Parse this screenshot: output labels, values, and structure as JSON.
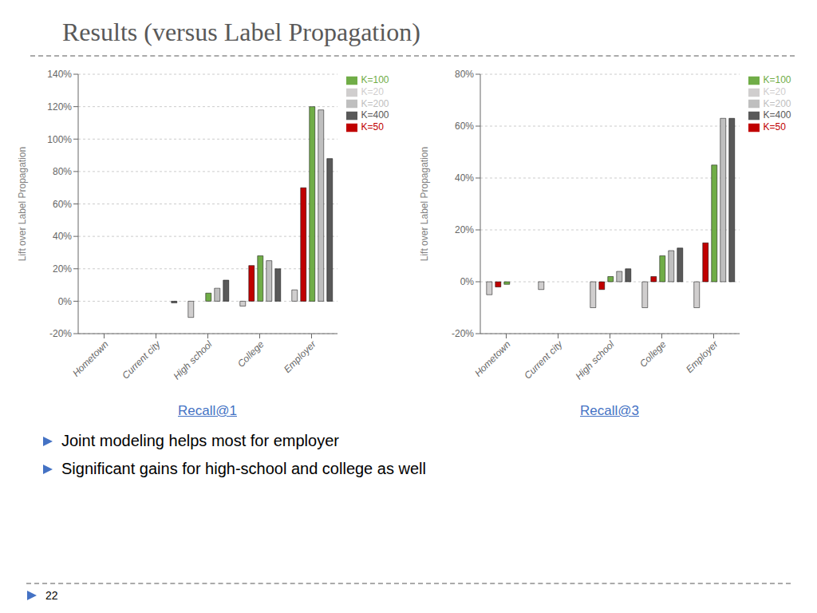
{
  "title": "Results (versus Label Propagation)",
  "annotations": [
    "Joint modeling helps most for employer",
    "Significant gains for high-school and college as well"
  ],
  "footer": "22",
  "chart_data": [
    {
      "type": "bar",
      "xlabel": "Recall@1",
      "ylabel": "Lift over Label Propagation",
      "categories": [
        "Hometown",
        "Current city",
        "High school",
        "College",
        "Employer"
      ],
      "series": [
        {
          "name": "K=20",
          "color": "#d0cece",
          "values": [
            0.0,
            0.0,
            -0.1,
            -0.03,
            0.07
          ]
        },
        {
          "name": "K=50",
          "color": "#c00000",
          "values": [
            0.0,
            0.0,
            0.0,
            0.22,
            0.7
          ]
        },
        {
          "name": "K=100",
          "color": "#70ad47",
          "values": [
            0.0,
            0.0,
            0.05,
            0.28,
            1.2
          ]
        },
        {
          "name": "K=200",
          "color": "#bfbfbf",
          "values": [
            0.0,
            0.0,
            0.08,
            0.25,
            1.18
          ]
        },
        {
          "name": "K=400",
          "color": "#595959",
          "values": [
            0.0,
            -0.01,
            0.13,
            0.2,
            0.88
          ]
        }
      ],
      "ylim": [
        -0.2,
        1.4
      ],
      "yticks": [
        {
          "value": -0.2,
          "label": "-20%"
        },
        {
          "value": 0.0,
          "label": "0%"
        },
        {
          "value": 0.2,
          "label": "20%"
        },
        {
          "value": 0.4,
          "label": "40%"
        },
        {
          "value": 0.6,
          "label": "60%"
        },
        {
          "value": 0.8,
          "label": "80%"
        },
        {
          "value": 1.0,
          "label": "100%"
        },
        {
          "value": 1.2,
          "label": "120%"
        },
        {
          "value": 1.4,
          "label": "140%"
        }
      ],
      "grid": true,
      "legend": "right"
    },
    {
      "type": "bar",
      "xlabel": "Recall@3",
      "ylabel": "Lift over Label Propagation",
      "categories": [
        "Hometown",
        "Current city",
        "High school",
        "College",
        "Employer"
      ],
      "series": [
        {
          "name": "K=20",
          "color": "#d0cece",
          "values": [
            -0.05,
            -0.03,
            -0.1,
            -0.1,
            -0.1
          ]
        },
        {
          "name": "K=50",
          "color": "#c00000",
          "values": [
            -0.02,
            0.0,
            -0.03,
            0.02,
            0.15
          ]
        },
        {
          "name": "K=100",
          "color": "#70ad47",
          "values": [
            -0.01,
            0.0,
            0.02,
            0.1,
            0.45
          ]
        },
        {
          "name": "K=200",
          "color": "#bfbfbf",
          "values": [
            0.0,
            0.0,
            0.04,
            0.12,
            0.63
          ]
        },
        {
          "name": "K=400",
          "color": "#595959",
          "values": [
            0.0,
            0.0,
            0.05,
            0.13,
            0.63
          ]
        }
      ],
      "ylim": [
        -0.2,
        0.8
      ],
      "yticks": [
        {
          "value": -0.2,
          "label": "-20%"
        },
        {
          "value": 0.0,
          "label": "0%"
        },
        {
          "value": 0.2,
          "label": "20%"
        },
        {
          "value": 0.4,
          "label": "40%"
        },
        {
          "value": 0.6,
          "label": "60%"
        },
        {
          "value": 0.8,
          "label": "80%"
        }
      ],
      "grid": true,
      "legend": "right"
    }
  ]
}
